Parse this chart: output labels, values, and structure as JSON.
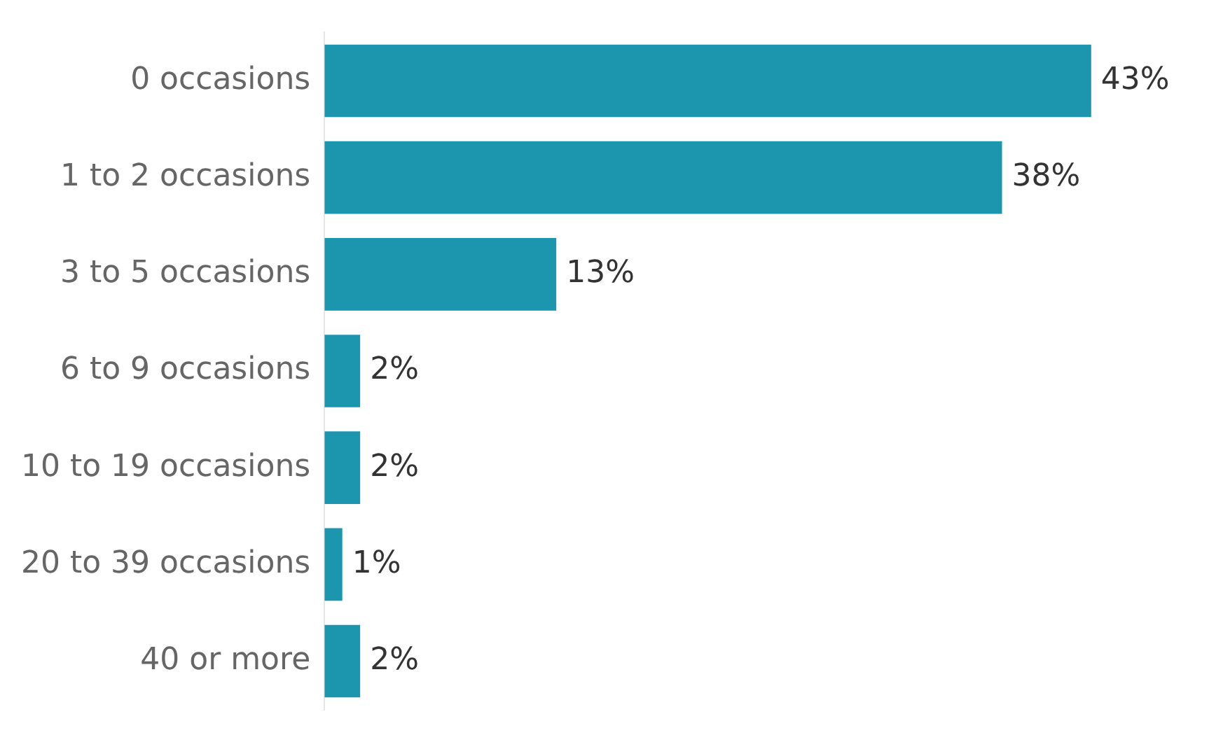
{
  "chart_data": {
    "type": "bar",
    "orientation": "horizontal",
    "categories": [
      "0 occasions",
      "1 to 2 occasions",
      "3 to 5 occasions",
      "6 to 9 occasions",
      "10 to 19 occasions",
      "20 to 39 occasions",
      "40 or more"
    ],
    "values": [
      43,
      38,
      13,
      2,
      2,
      1,
      2
    ],
    "value_labels": [
      "43%",
      "38%",
      "13%",
      "2%",
      "2%",
      "1%",
      "2%"
    ],
    "color": "#1b96ae",
    "tick_labels": "y",
    "grid": false,
    "legend": false
  }
}
